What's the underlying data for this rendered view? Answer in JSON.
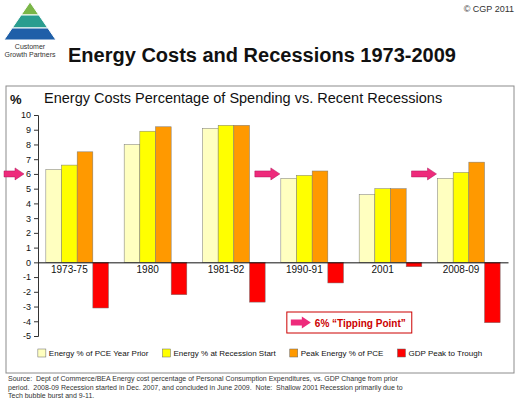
{
  "chart_data": {
    "type": "bar",
    "title": "Energy Costs and Recessions 1973-2009",
    "subtitle": "Energy Costs Percentage of Spending vs. Recent Recessions",
    "y_label": "%",
    "copyright": "© CGP 2011",
    "logo_text": [
      "Customer",
      "Growth Partners"
    ],
    "categories": [
      "1973-75",
      "1980",
      "1981-82",
      "1990-91",
      "2001",
      "2008-09"
    ],
    "series": [
      {
        "name": "Energy % of PCE Year Prior",
        "color": "#ffffc0",
        "values": [
          6.3,
          8.0,
          9.1,
          5.7,
          4.6,
          5.7
        ]
      },
      {
        "name": "Energy % at Recession Start",
        "color": "#ffff00",
        "values": [
          6.6,
          8.9,
          9.3,
          5.9,
          5.0,
          6.1
        ]
      },
      {
        "name": "Peak Energy % of PCE",
        "color": "#ff9900",
        "values": [
          7.5,
          9.2,
          9.3,
          6.2,
          5.0,
          6.8
        ]
      },
      {
        "name": "GDP Peak to Trough",
        "color": "#ff0000",
        "values": [
          -3.1,
          -2.2,
          -2.7,
          -1.4,
          -0.3,
          -4.1
        ]
      }
    ],
    "ylim": [
      -5,
      10
    ],
    "yticks": [
      -5,
      -4,
      -3,
      -2,
      -1,
      0,
      1,
      2,
      3,
      4,
      5,
      6,
      7,
      8,
      9,
      10
    ],
    "grid": false,
    "legend": "bottom",
    "annotations": [
      {
        "text": "6% “Tipping Point”",
        "value": 6
      }
    ],
    "source": [
      "Source:  Dept of Commerce/BEA Energy cost percentage of Personal Consumption Expenditures, vs. GDP Change from prior",
      "period.  2008-09 Recession started in Dec. 2007, and concluded in June 2009.  Note:  Shallow 2001 Recession primarily due to",
      "Tech bubble burst and 9-11."
    ]
  }
}
